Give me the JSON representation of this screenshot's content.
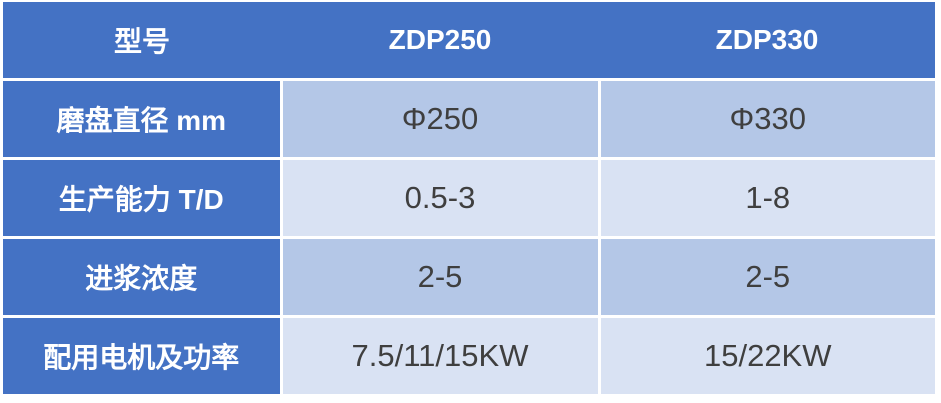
{
  "table": {
    "title_context": "product-spec-table",
    "header": {
      "col_label": "型号",
      "col_model_1": "ZDP250",
      "col_model_2": "ZDP330"
    },
    "rows": [
      {
        "label": "磨盘直径 mm",
        "zdp250": "Φ250",
        "zdp330": "Φ330"
      },
      {
        "label": "生产能力 T/D",
        "zdp250": "0.5-3",
        "zdp330": "1-8"
      },
      {
        "label": "进浆浓度",
        "zdp250": "2-5",
        "zdp330": "2-5"
      },
      {
        "label": "配用电机及功率",
        "zdp250": "7.5/11/15KW",
        "zdp330": "15/22KW"
      }
    ],
    "colors": {
      "header_bg": "#4472c4",
      "label_column_bg": "#4472c4",
      "data_row_odd_bg": "#b4c7e7",
      "data_row_even_bg": "#d9e2f3",
      "header_text": "#ffffff",
      "cell_text": "#3f3f3f",
      "divider": "#ffffff"
    }
  }
}
